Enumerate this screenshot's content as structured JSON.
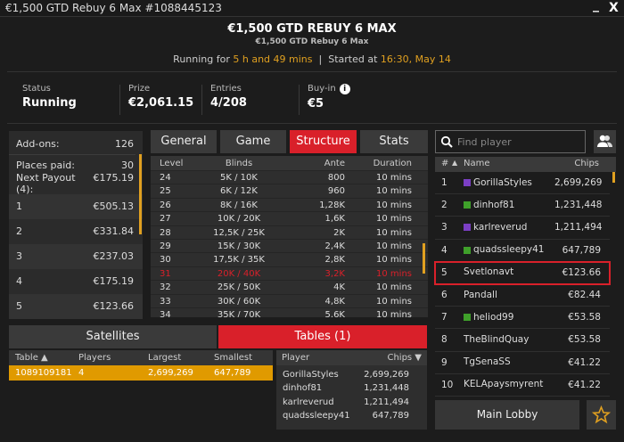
{
  "window": {
    "title": "€1,500 GTD Rebuy 6 Max #1088445123",
    "minimize": "_",
    "close": "X"
  },
  "header": {
    "title": "€1,500 GTD REBUY 6 MAX",
    "subtitle": "€1,500 GTD Rebuy 6 Max",
    "running_prefix": "Running for ",
    "running_value": "5 h and 49 mins",
    "separator": "|",
    "started_prefix": "Started at ",
    "started_value": "16:30, May 14"
  },
  "stats": [
    {
      "label": "Status",
      "value": "Running"
    },
    {
      "label": "Prize",
      "value": "€2,061.15"
    },
    {
      "label": "Entries",
      "value": "4/208"
    },
    {
      "label": "Buy-in",
      "value": "€5"
    }
  ],
  "payouts": {
    "addons_label": "Add-ons:",
    "addons_value": "126",
    "places_label": "Places paid:",
    "places_value": "30",
    "next_label": "Next Payout (4):",
    "next_value": "€175.19",
    "rows": [
      {
        "place": "1",
        "amount": "€505.13"
      },
      {
        "place": "2",
        "amount": "€331.84"
      },
      {
        "place": "3",
        "amount": "€237.03"
      },
      {
        "place": "4",
        "amount": "€175.19"
      },
      {
        "place": "5",
        "amount": "€123.66"
      }
    ]
  },
  "tabs": [
    {
      "label": "General"
    },
    {
      "label": "Game"
    },
    {
      "label": "Structure",
      "active": true
    },
    {
      "label": "Stats"
    }
  ],
  "structure": {
    "headers": [
      "Level",
      "Blinds",
      "Ante",
      "Duration"
    ],
    "current_level": "31",
    "rows": [
      [
        "24",
        "5K / 10K",
        "800",
        "10 mins"
      ],
      [
        "25",
        "6K / 12K",
        "960",
        "10 mins"
      ],
      [
        "26",
        "8K / 16K",
        "1,28K",
        "10 mins"
      ],
      [
        "27",
        "10K / 20K",
        "1,6K",
        "10 mins"
      ],
      [
        "28",
        "12,5K / 25K",
        "2K",
        "10 mins"
      ],
      [
        "29",
        "15K / 30K",
        "2,4K",
        "10 mins"
      ],
      [
        "30",
        "17,5K / 35K",
        "2,8K",
        "10 mins"
      ],
      [
        "31",
        "20K / 40K",
        "3,2K",
        "10 mins"
      ],
      [
        "32",
        "25K / 50K",
        "4K",
        "10 mins"
      ],
      [
        "33",
        "30K / 60K",
        "4,8K",
        "10 mins"
      ],
      [
        "34",
        "35K / 70K",
        "5.6K",
        "10 mins"
      ]
    ]
  },
  "bottom_tabs": {
    "satellites": "Satellites",
    "tables": "Tables (1)"
  },
  "tables": {
    "headers": [
      "Table ▲",
      "Players",
      "Largest",
      "Smallest"
    ],
    "rows": [
      [
        "1089109181",
        "4",
        "2,699,269",
        "647,789"
      ]
    ]
  },
  "table_players": {
    "headers": [
      "Player",
      "Chips ▼"
    ],
    "rows": [
      [
        "GorillaStyles",
        "2,699,269"
      ],
      [
        "dinhof81",
        "1,231,448"
      ],
      [
        "karlreverud",
        "1,211,494"
      ],
      [
        "quadssleepy41",
        "647,789"
      ]
    ]
  },
  "players": {
    "search_placeholder": "Find player",
    "headers": {
      "rank": "#",
      "sort": "▲",
      "name": "Name",
      "chips": "Chips"
    },
    "rows": [
      {
        "rank": "1",
        "name": "GorillaStyles",
        "chips": "2,699,269",
        "color": "#7b3fc4"
      },
      {
        "rank": "2",
        "name": "dinhof81",
        "chips": "1,231,448",
        "color": "#3fa02a"
      },
      {
        "rank": "3",
        "name": "karlreverud",
        "chips": "1,211,494",
        "color": "#7b3fc4"
      },
      {
        "rank": "4",
        "name": "quadssleepy41",
        "chips": "647,789",
        "color": "#3fa02a"
      },
      {
        "rank": "5",
        "name": "Svetlonavt",
        "chips": "€123.66",
        "selected": true
      },
      {
        "rank": "6",
        "name": "Pandall",
        "chips": "€82.44"
      },
      {
        "rank": "7",
        "name": "heliod99",
        "chips": "€53.58",
        "color": "#3fa02a"
      },
      {
        "rank": "8",
        "name": "TheBlindQuay",
        "chips": "€53.58"
      },
      {
        "rank": "9",
        "name": "TgSenaSS",
        "chips": "€41.22"
      },
      {
        "rank": "10",
        "name": "KELApaysmyrent",
        "chips": "€41.22"
      }
    ]
  },
  "footer": {
    "main_lobby": "Main Lobby"
  },
  "colors": {
    "accent_red": "#d9202a",
    "accent_orange": "#e09a00",
    "highlight_text": "#e0a020"
  }
}
